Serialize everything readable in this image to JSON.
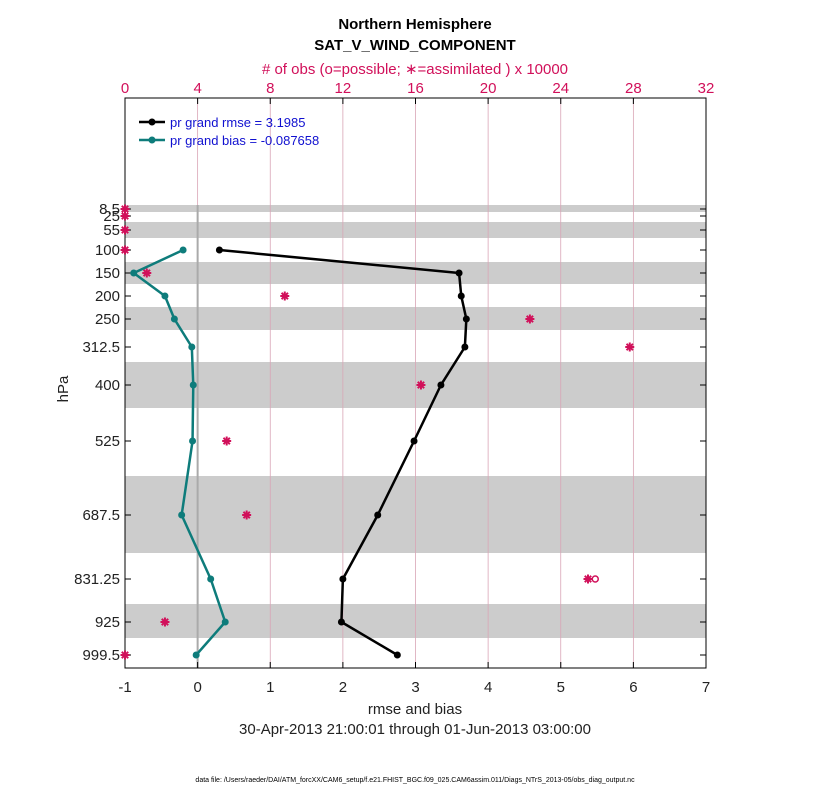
{
  "chart_data": {
    "type": "line",
    "title": "Northern Hemisphere",
    "subtitle": "SAT_V_WIND_COMPONENT",
    "top_axis_label": "# of obs (o=possible; ∗=assimilated ) x 10000",
    "xlabel": "rmse and bias",
    "ylabel": "hPa",
    "date_range": "30-Apr-2013 21:00:01 through 01-Jun-2013 03:00:00",
    "footer": "data file: /Users/raeder/DAI/ATM_forcXX/CAM6_setup/f.e21.FHIST_BGC.f09_025.CAM6assim.011/Diags_NTrS_2013-05/obs_diag_output.nc",
    "xlim": [
      -1,
      7
    ],
    "x_ticks": [
      "-1",
      "0",
      "1",
      "2",
      "3",
      "4",
      "5",
      "6",
      "7"
    ],
    "top_xlim": [
      0,
      32
    ],
    "top_ticks": [
      "0",
      "4",
      "8",
      "12",
      "16",
      "20",
      "24",
      "28",
      "32"
    ],
    "levels": [
      "8.5",
      "25",
      "55",
      "100",
      "150",
      "200",
      "250",
      "312.5",
      "400",
      "525",
      "687.5",
      "831.25",
      "925",
      "999.5"
    ],
    "level_values": [
      8.5,
      25,
      55,
      100,
      150,
      200,
      250,
      312.5,
      400,
      525,
      687.5,
      831.25,
      925,
      999.5
    ],
    "shaded_bands_hPa": [
      [
        5,
        12
      ],
      [
        40,
        70
      ],
      [
        125,
        175
      ],
      [
        225,
        275
      ],
      [
        350,
        450
      ],
      [
        600,
        775
      ],
      [
        875,
        975
      ]
    ],
    "series": [
      {
        "name": "pr grand rmse = 3.1985",
        "color": "#000000",
        "levels": [
          100,
          150,
          200,
          250,
          312.5,
          400,
          525,
          687.5,
          831.25,
          925,
          999.5
        ],
        "values": [
          0.3,
          3.6,
          3.63,
          3.7,
          3.68,
          3.35,
          2.98,
          2.48,
          2.0,
          1.98,
          2.75
        ]
      },
      {
        "name": "pr grand bias = -0.087658",
        "color": "#0e7c7b",
        "levels": [
          100,
          150,
          200,
          250,
          312.5,
          400,
          525,
          687.5,
          831.25,
          925,
          999.5
        ],
        "values": [
          -0.2,
          -0.88,
          -0.45,
          -0.32,
          -0.08,
          -0.06,
          -0.07,
          -0.22,
          0.18,
          0.38,
          -0.02
        ]
      }
    ],
    "obs_counts": {
      "levels": [
        8.5,
        25,
        55,
        100,
        150,
        200,
        250,
        312.5,
        400,
        525,
        687.5,
        831.25,
        925,
        999.5
      ],
      "assimilated": [
        0,
        0,
        0,
        0,
        1.2,
        8.8,
        22.3,
        27.8,
        16.3,
        5.6,
        6.7,
        25.5,
        2.2,
        0
      ],
      "possible": [
        0,
        0,
        0,
        0,
        1.2,
        8.8,
        22.3,
        27.8,
        16.3,
        5.6,
        6.7,
        25.9,
        2.2,
        0
      ]
    }
  },
  "colors": {
    "rmse": "#000000",
    "bias": "#0e7c7b",
    "obs": "#d1105a",
    "band": "#cccccc",
    "zero_line": "#aaaaaa"
  }
}
